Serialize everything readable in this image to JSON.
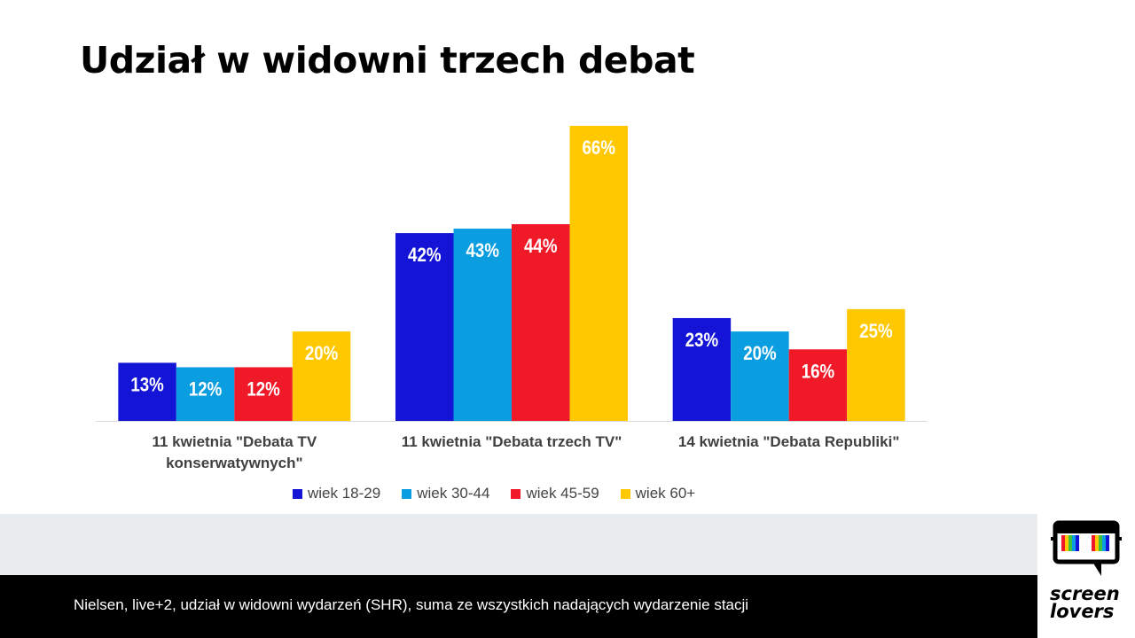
{
  "title": "Udział w widowni trzech debat",
  "chart_data": {
    "type": "bar",
    "categories": [
      [
        "11 kwietnia \"Debata TV",
        "konserwatywnych\""
      ],
      [
        "11 kwietnia \"Debata trzech TV\""
      ],
      [
        "14 kwietnia \"Debata Republiki\""
      ]
    ],
    "series": [
      {
        "name": "wiek 18-29",
        "color": "#1414d6",
        "values": [
          13,
          42,
          23
        ]
      },
      {
        "name": "wiek 30-44",
        "color": "#0a9de0",
        "values": [
          12,
          43,
          20
        ]
      },
      {
        "name": "wiek 45-59",
        "color": "#f01928",
        "values": [
          12,
          44,
          16
        ]
      },
      {
        "name": "wiek 60+",
        "color": "#ffc800",
        "values": [
          20,
          66,
          25
        ]
      }
    ],
    "value_suffix": "%",
    "ylim": [
      0,
      66
    ],
    "grid": false,
    "legend_position": "bottom"
  },
  "legend": {
    "items": [
      {
        "label": "wiek 18-29",
        "color": "#1414d6"
      },
      {
        "label": "wiek 30-44",
        "color": "#0a9de0"
      },
      {
        "label": "wiek 45-59",
        "color": "#f01928"
      },
      {
        "label": "wiek 60+",
        "color": "#ffc800"
      }
    ]
  },
  "footer": {
    "source": "Nielsen, live+2, udział w widowni wydarzeń (SHR), suma ze wszystkich nadających wydarzenie stacji"
  },
  "logo": {
    "line1": "screen",
    "line2": "lovers"
  }
}
